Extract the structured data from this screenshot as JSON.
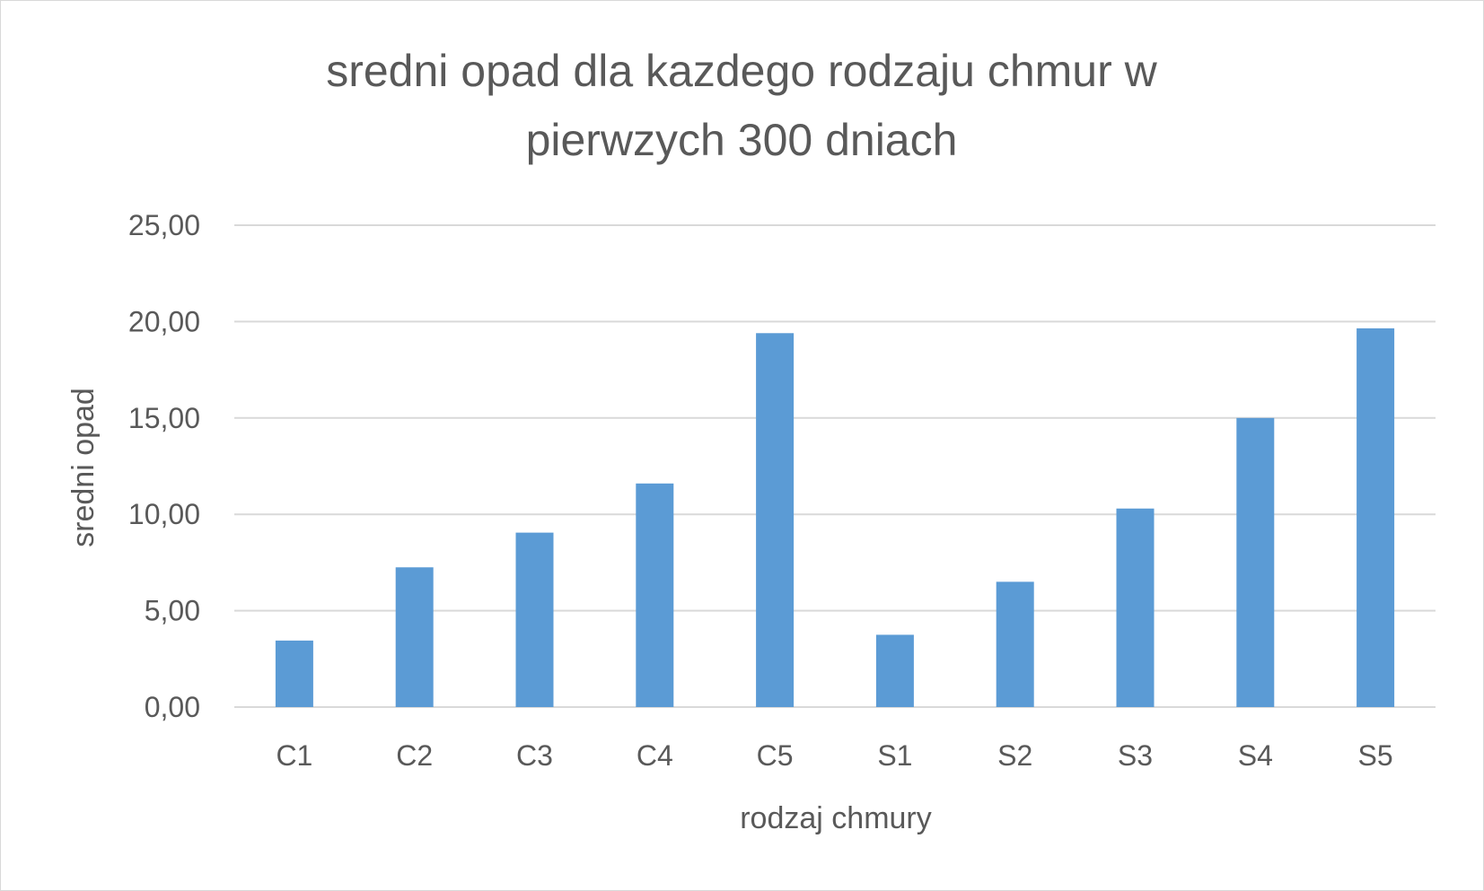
{
  "chart_data": {
    "type": "bar",
    "title_lines": [
      "sredni opad dla kazdego rodzaju chmur w",
      "pierwzych 300 dniach"
    ],
    "title": "sredni opad dla kazdego rodzaju chmur w pierwzych 300 dniach",
    "xlabel": "rodzaj chmury",
    "ylabel": "sredni opad",
    "categories": [
      "C1",
      "C2",
      "C3",
      "C4",
      "C5",
      "S1",
      "S2",
      "S3",
      "S4",
      "S5"
    ],
    "values": [
      3.45,
      7.25,
      9.05,
      11.6,
      19.4,
      3.75,
      6.5,
      10.3,
      15.0,
      19.65
    ],
    "ylim": [
      0,
      25
    ],
    "yticks": [
      0,
      5,
      10,
      15,
      20,
      25
    ],
    "ytick_labels": [
      "0,00",
      "5,00",
      "10,00",
      "15,00",
      "20,00",
      "25,00"
    ],
    "grid": true,
    "legend": "none",
    "bar_color": "#5b9bd5",
    "grid_color": "#d9d9d9",
    "text_color": "#595959"
  }
}
